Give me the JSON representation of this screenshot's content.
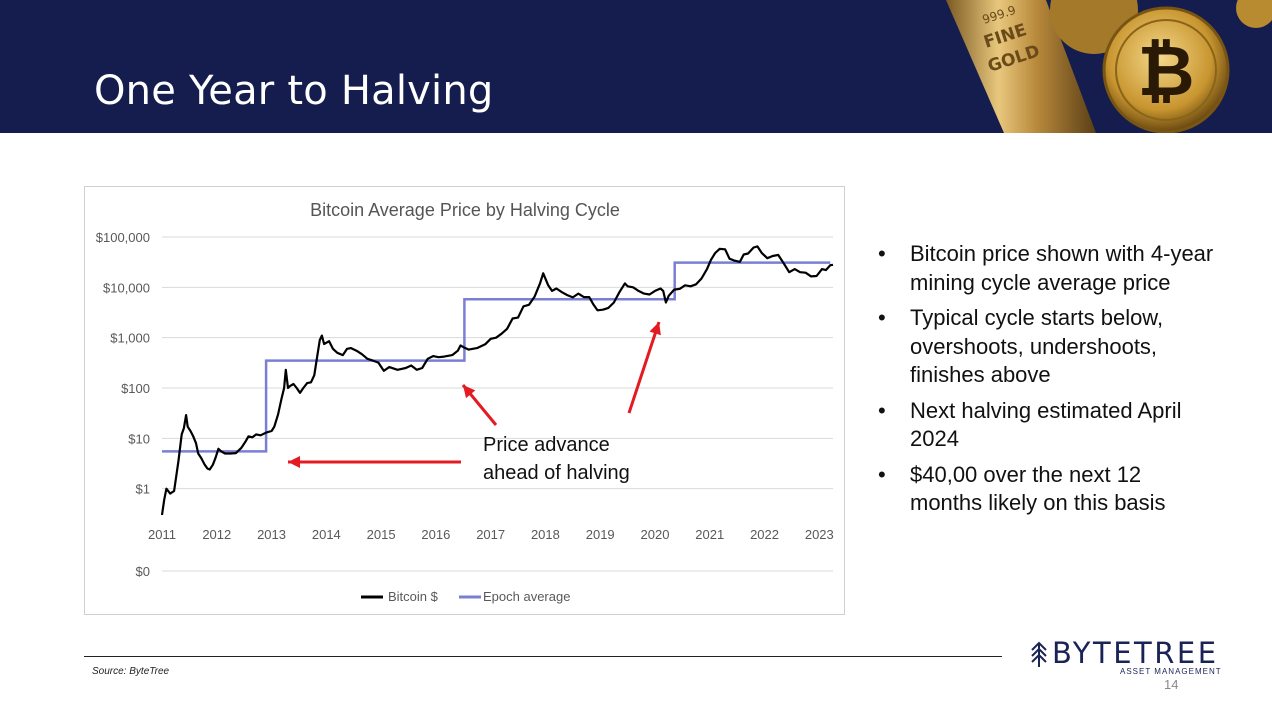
{
  "slide": {
    "title": "One Year to Halving",
    "source": "Source: ByteTree",
    "page_number": "14"
  },
  "header_art": {
    "gold_bar_text": [
      "999.9",
      "FINE",
      "GOLD"
    ],
    "coin_icon": "bitcoin-coin-icon"
  },
  "bullets": [
    "Bitcoin price shown with 4-year mining cycle average price",
    "Typical cycle starts below, overshoots, undershoots, finishes above",
    "Next halving estimated April 2024",
    "$40,00 over the next 12 months likely on this basis"
  ],
  "logo": {
    "name": "BYTETREE",
    "subtitle": "ASSET MANAGEMENT",
    "icon": "tree-icon"
  },
  "annotation": {
    "text_line1": "Price advance",
    "text_line2": "ahead of halving",
    "arrow_color": "#e31b23"
  },
  "colors": {
    "header_bg": "#141d4e",
    "bitcoin_line": "#000000",
    "epoch_line": "#7b7fd4"
  },
  "chart_data": {
    "type": "line",
    "title": "Bitcoin Average Price by Halving Cycle",
    "y_scale": "log",
    "y_ticks": [
      {
        "value": 1,
        "label": "$1"
      },
      {
        "value": 10,
        "label": "$10"
      },
      {
        "value": 100,
        "label": "$100"
      },
      {
        "value": 1000,
        "label": "$1,000"
      },
      {
        "value": 10000,
        "label": "$10,000"
      },
      {
        "value": 100000,
        "label": "$100,000"
      }
    ],
    "y_zero_label": "$0",
    "x_ticks": [
      "2011",
      "2012",
      "2013",
      "2014",
      "2015",
      "2016",
      "2017",
      "2018",
      "2019",
      "2020",
      "2021",
      "2022",
      "2023"
    ],
    "xlim": [
      2011.0,
      2023.25
    ],
    "ylim": [
      0.3,
      100000
    ],
    "legend_position": "bottom",
    "grid": true,
    "series": [
      {
        "name": "Bitcoin $",
        "color": "#000000",
        "points": [
          [
            2011.0,
            0.3
          ],
          [
            2011.04,
            0.6
          ],
          [
            2011.08,
            1.0
          ],
          [
            2011.15,
            0.8
          ],
          [
            2011.22,
            0.9
          ],
          [
            2011.3,
            3.5
          ],
          [
            2011.36,
            12
          ],
          [
            2011.4,
            16
          ],
          [
            2011.44,
            29
          ],
          [
            2011.47,
            17
          ],
          [
            2011.52,
            14
          ],
          [
            2011.57,
            11
          ],
          [
            2011.62,
            8
          ],
          [
            2011.66,
            5
          ],
          [
            2011.72,
            4
          ],
          [
            2011.78,
            3.0
          ],
          [
            2011.83,
            2.5
          ],
          [
            2011.87,
            2.4
          ],
          [
            2011.93,
            3.0
          ],
          [
            2011.98,
            4.2
          ],
          [
            2012.03,
            6.2
          ],
          [
            2012.08,
            5.5
          ],
          [
            2012.15,
            5.0
          ],
          [
            2012.25,
            5.0
          ],
          [
            2012.35,
            5.1
          ],
          [
            2012.45,
            6.5
          ],
          [
            2012.52,
            8.5
          ],
          [
            2012.58,
            11
          ],
          [
            2012.65,
            10.5
          ],
          [
            2012.72,
            12
          ],
          [
            2012.8,
            11.5
          ],
          [
            2012.9,
            13
          ],
          [
            2013.0,
            14
          ],
          [
            2013.05,
            17
          ],
          [
            2013.12,
            30
          ],
          [
            2013.18,
            60
          ],
          [
            2013.23,
            100
          ],
          [
            2013.26,
            230
          ],
          [
            2013.3,
            100
          ],
          [
            2013.34,
            110
          ],
          [
            2013.4,
            120
          ],
          [
            2013.46,
            100
          ],
          [
            2013.52,
            80
          ],
          [
            2013.58,
            100
          ],
          [
            2013.65,
            125
          ],
          [
            2013.72,
            130
          ],
          [
            2013.78,
            180
          ],
          [
            2013.83,
            400
          ],
          [
            2013.88,
            900
          ],
          [
            2013.92,
            1100
          ],
          [
            2013.96,
            750
          ],
          [
            2014.05,
            850
          ],
          [
            2014.12,
            600
          ],
          [
            2014.2,
            500
          ],
          [
            2014.3,
            450
          ],
          [
            2014.38,
            600
          ],
          [
            2014.45,
            620
          ],
          [
            2014.55,
            550
          ],
          [
            2014.65,
            470
          ],
          [
            2014.75,
            380
          ],
          [
            2014.85,
            350
          ],
          [
            2014.95,
            320
          ],
          [
            2015.05,
            220
          ],
          [
            2015.15,
            260
          ],
          [
            2015.3,
            230
          ],
          [
            2015.45,
            250
          ],
          [
            2015.55,
            280
          ],
          [
            2015.65,
            230
          ],
          [
            2015.75,
            250
          ],
          [
            2015.85,
            380
          ],
          [
            2015.95,
            430
          ],
          [
            2016.05,
            410
          ],
          [
            2016.15,
            420
          ],
          [
            2016.3,
            450
          ],
          [
            2016.4,
            550
          ],
          [
            2016.45,
            700
          ],
          [
            2016.5,
            650
          ],
          [
            2016.6,
            580
          ],
          [
            2016.75,
            620
          ],
          [
            2016.9,
            740
          ],
          [
            2017.0,
            950
          ],
          [
            2017.1,
            1000
          ],
          [
            2017.2,
            1200
          ],
          [
            2017.3,
            1500
          ],
          [
            2017.4,
            2400
          ],
          [
            2017.5,
            2500
          ],
          [
            2017.6,
            4200
          ],
          [
            2017.7,
            4500
          ],
          [
            2017.8,
            6500
          ],
          [
            2017.9,
            12000
          ],
          [
            2017.96,
            19000
          ],
          [
            2018.05,
            11000
          ],
          [
            2018.12,
            8500
          ],
          [
            2018.2,
            9500
          ],
          [
            2018.3,
            8000
          ],
          [
            2018.4,
            7000
          ],
          [
            2018.5,
            6300
          ],
          [
            2018.6,
            7500
          ],
          [
            2018.7,
            6400
          ],
          [
            2018.8,
            6400
          ],
          [
            2018.88,
            4500
          ],
          [
            2018.95,
            3500
          ],
          [
            2019.05,
            3600
          ],
          [
            2019.15,
            3900
          ],
          [
            2019.25,
            5000
          ],
          [
            2019.35,
            8000
          ],
          [
            2019.45,
            12000
          ],
          [
            2019.5,
            10500
          ],
          [
            2019.6,
            10000
          ],
          [
            2019.7,
            8500
          ],
          [
            2019.8,
            7500
          ],
          [
            2019.9,
            7200
          ],
          [
            2020.0,
            8500
          ],
          [
            2020.1,
            9500
          ],
          [
            2020.15,
            8500
          ],
          [
            2020.2,
            5000
          ],
          [
            2020.25,
            6800
          ],
          [
            2020.35,
            9000
          ],
          [
            2020.45,
            9300
          ],
          [
            2020.55,
            11000
          ],
          [
            2020.65,
            10500
          ],
          [
            2020.75,
            11500
          ],
          [
            2020.85,
            15000
          ],
          [
            2020.95,
            23000
          ],
          [
            2021.02,
            35000
          ],
          [
            2021.1,
            48000
          ],
          [
            2021.18,
            58000
          ],
          [
            2021.28,
            57000
          ],
          [
            2021.36,
            37000
          ],
          [
            2021.45,
            34000
          ],
          [
            2021.55,
            32000
          ],
          [
            2021.62,
            45000
          ],
          [
            2021.7,
            47000
          ],
          [
            2021.8,
            62000
          ],
          [
            2021.87,
            65000
          ],
          [
            2021.95,
            48000
          ],
          [
            2022.05,
            38000
          ],
          [
            2022.15,
            42000
          ],
          [
            2022.25,
            44000
          ],
          [
            2022.35,
            30000
          ],
          [
            2022.45,
            20000
          ],
          [
            2022.55,
            23000
          ],
          [
            2022.65,
            20000
          ],
          [
            2022.75,
            19500
          ],
          [
            2022.85,
            16500
          ],
          [
            2022.95,
            16800
          ],
          [
            2023.05,
            23000
          ],
          [
            2023.12,
            22000
          ],
          [
            2023.2,
            27500
          ],
          [
            2023.25,
            28000
          ]
        ]
      },
      {
        "name": "Epoch average",
        "color": "#7b7fd4",
        "steps": [
          {
            "x_start": 2011.0,
            "x_end": 2012.9,
            "y": 5.5
          },
          {
            "x_start": 2012.9,
            "x_end": 2016.52,
            "y": 350
          },
          {
            "x_start": 2016.52,
            "x_end": 2020.36,
            "y": 5800
          },
          {
            "x_start": 2020.36,
            "x_end": 2023.2,
            "y": 31000
          }
        ]
      }
    ]
  }
}
